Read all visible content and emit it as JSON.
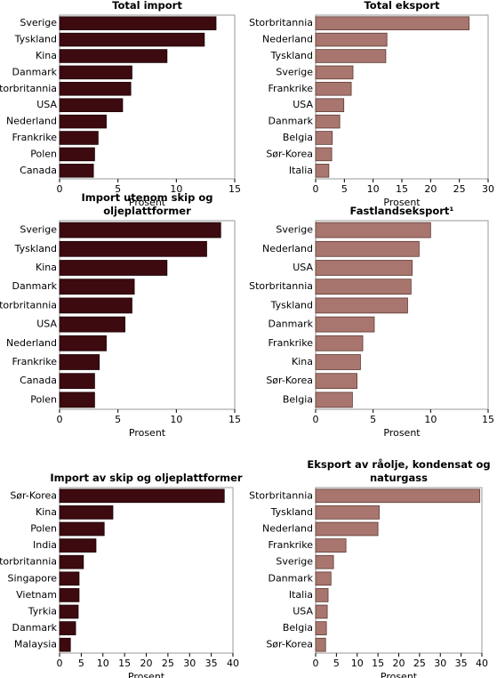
{
  "chart_data": [
    {
      "type": "bar",
      "title": "Total import",
      "xlabel": "Prosent",
      "color": "#3d0a10",
      "edgecolor": "#1a0003",
      "categories": [
        "Sverige",
        "Tyskland",
        "Kina",
        "Danmark",
        "Storbritannia",
        "USA",
        "Nederland",
        "Frankrike",
        "Polen",
        "Canada"
      ],
      "values": [
        13.4,
        12.4,
        9.2,
        6.2,
        6.1,
        5.4,
        4.0,
        3.3,
        3.0,
        2.9
      ],
      "xlim": [
        0,
        15
      ],
      "xticks": [
        0,
        5,
        10,
        15
      ]
    },
    {
      "type": "bar",
      "title": "Total eksport",
      "xlabel": "Prosent",
      "color": "#a8766e",
      "edgecolor": "#5e3a34",
      "categories": [
        "Storbritannia",
        "Nederland",
        "Tyskland",
        "Sverige",
        "Frankrike",
        "USA",
        "Danmark",
        "Belgia",
        "Sør-Korea",
        "Italia"
      ],
      "values": [
        26.7,
        12.4,
        12.2,
        6.5,
        6.2,
        4.9,
        4.2,
        2.9,
        2.8,
        2.3
      ],
      "xlim": [
        0,
        30
      ],
      "xticks": [
        0,
        5,
        10,
        15,
        20,
        25,
        30
      ]
    },
    {
      "type": "bar",
      "title": "Import utenom skip og oljeplattformer",
      "xlabel": "Prosent",
      "color": "#3d0a10",
      "edgecolor": "#1a0003",
      "categories": [
        "Sverige",
        "Tyskland",
        "Kina",
        "Danmark",
        "Storbritannia",
        "USA",
        "Nederland",
        "Frankrike",
        "Canada",
        "Polen"
      ],
      "values": [
        13.8,
        12.6,
        9.2,
        6.4,
        6.2,
        5.6,
        4.0,
        3.4,
        3.0,
        3.0
      ],
      "xlim": [
        0,
        15
      ],
      "xticks": [
        0,
        5,
        10,
        15
      ]
    },
    {
      "type": "bar",
      "title": "Fastlandseksport¹",
      "xlabel": "Prosent",
      "color": "#a8766e",
      "edgecolor": "#5e3a34",
      "categories": [
        "Sverige",
        "Nederland",
        "USA",
        "Storbritannia",
        "Tyskland",
        "Danmark",
        "Frankrike",
        "Kina",
        "Sør-Korea",
        "Belgia"
      ],
      "values": [
        10.0,
        9.0,
        8.4,
        8.3,
        8.0,
        5.1,
        4.1,
        3.9,
        3.6,
        3.2
      ],
      "xlim": [
        0,
        15
      ],
      "xticks": [
        0,
        5,
        10,
        15
      ]
    },
    {
      "type": "bar",
      "title": "Import av skip og oljeplattformer",
      "xlabel": "Prosent",
      "color": "#3d0a10",
      "edgecolor": "#1a0003",
      "categories": [
        "Sør-Korea",
        "Kina",
        "Polen",
        "India",
        "Storbritannia",
        "Singapore",
        "Vietnam",
        "Tyrkia",
        "Danmark",
        "Malaysia"
      ],
      "values": [
        38.0,
        12.3,
        10.3,
        8.4,
        5.5,
        4.5,
        4.5,
        4.3,
        3.7,
        2.5
      ],
      "xlim": [
        0,
        40
      ],
      "xticks": [
        0,
        5,
        10,
        15,
        20,
        25,
        30,
        35,
        40
      ]
    },
    {
      "type": "bar",
      "title": "Eksport av råolje, kondensat og naturgass",
      "xlabel": "Prosent",
      "color": "#a8766e",
      "edgecolor": "#5e3a34",
      "categories": [
        "Storbritannia",
        "Tyskland",
        "Nederland",
        "Frankrike",
        "Sverige",
        "Danmark",
        "Italia",
        "USA",
        "Belgia",
        "Sør-Korea"
      ],
      "values": [
        39.5,
        15.3,
        15.0,
        7.3,
        4.3,
        3.7,
        3.0,
        2.8,
        2.6,
        2.4
      ],
      "xlim": [
        0,
        40
      ],
      "xticks": [
        0,
        5,
        10,
        15,
        20,
        25,
        30,
        35,
        40
      ]
    }
  ]
}
